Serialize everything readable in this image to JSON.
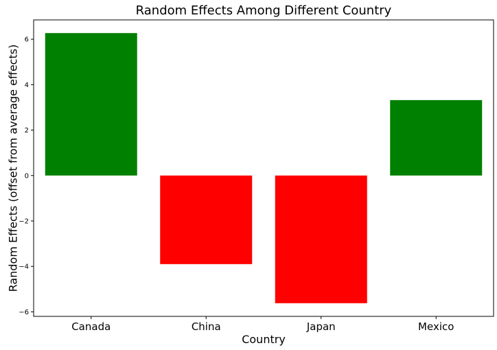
{
  "chart_data": {
    "type": "bar",
    "title": "Random Effects Among Different Country",
    "xlabel": "Country",
    "ylabel": "Random Effects (offset from average effects)",
    "categories": [
      "Canada",
      "China",
      "Japan",
      "Mexico"
    ],
    "values": [
      6.27,
      -3.9,
      -5.62,
      3.32
    ],
    "bar_colors": [
      "#008000",
      "#ff0000",
      "#ff0000",
      "#008000"
    ],
    "ylim": [
      -6.2,
      6.85
    ],
    "yticks": [
      -6,
      -4,
      -2,
      0,
      2,
      4,
      6
    ],
    "ytick_labels": [
      "−6",
      "−4",
      "−2",
      "0",
      "2",
      "4",
      "6"
    ],
    "grid": false,
    "legend": "none"
  }
}
